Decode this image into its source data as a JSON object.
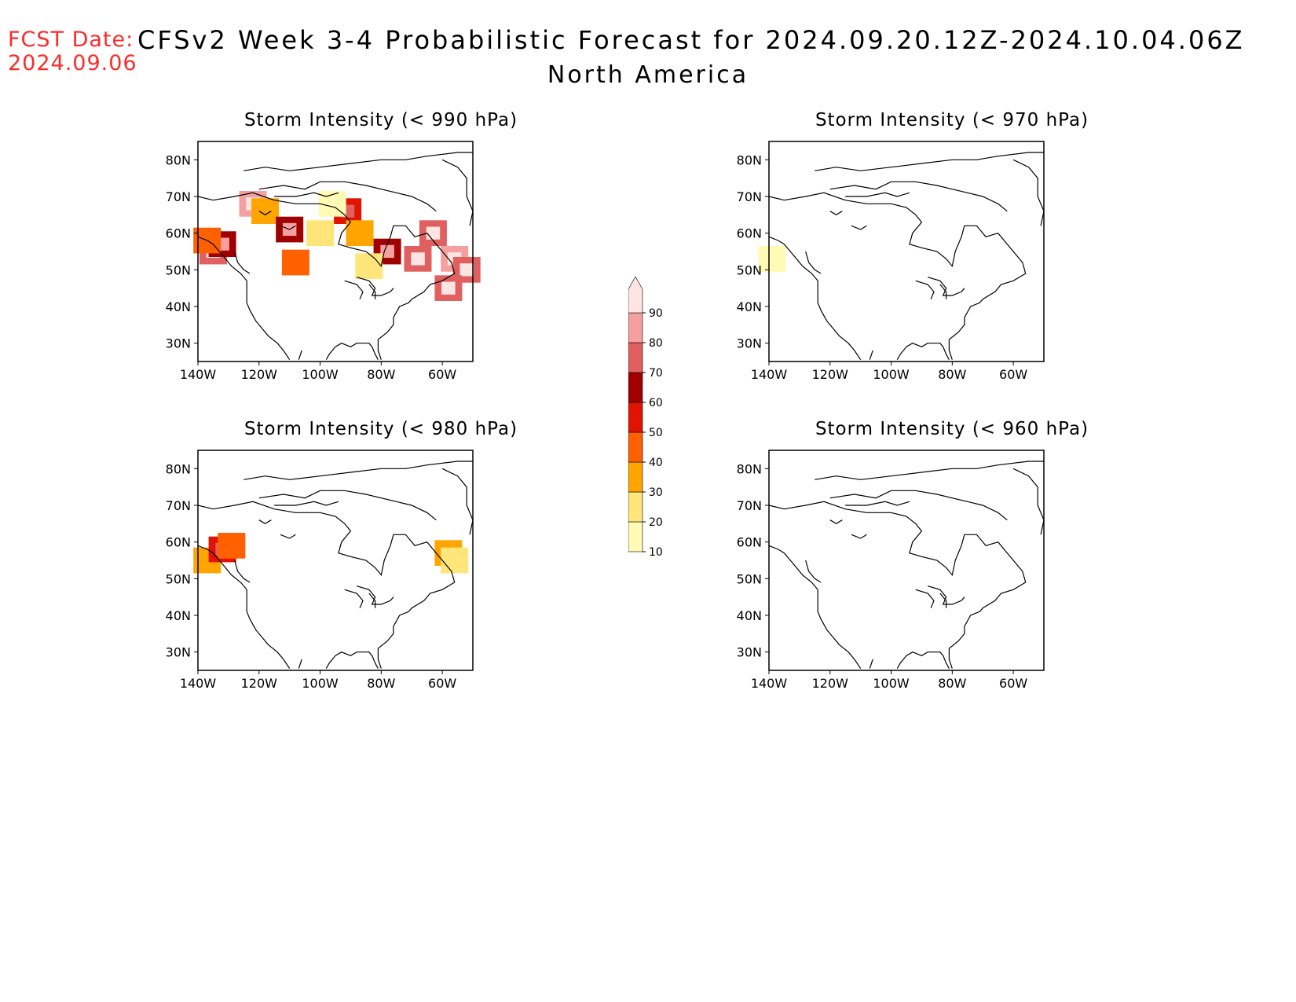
{
  "header": {
    "fcst_label": "FCST Date:",
    "fcst_date": "2024.09.06",
    "title": "CFSv2 Week 3-4 Probabilistic Forecast for 2024.09.20.12Z-2024.10.04.06Z",
    "subtitle": "North America"
  },
  "panels": [
    {
      "id": "p990",
      "title": "Storm Intensity (< 990 hPa)",
      "lat_ticks": [
        "80N",
        "70N",
        "60N",
        "50N",
        "40N",
        "30N"
      ],
      "lon_ticks": [
        "140W",
        "120W",
        "100W",
        "80W",
        "60W"
      ],
      "probability_cells": [
        {
          "lon": -135,
          "lat": 55,
          "p": 70
        },
        {
          "lon": -132,
          "lat": 57,
          "p": 60
        },
        {
          "lon": -137,
          "lat": 58,
          "p": 40
        },
        {
          "lon": -122,
          "lat": 68,
          "p": 85
        },
        {
          "lon": -118,
          "lat": 66,
          "p": 30
        },
        {
          "lon": -110,
          "lat": 61,
          "p": 60
        },
        {
          "lon": -108,
          "lat": 52,
          "p": 40
        },
        {
          "lon": -91,
          "lat": 66,
          "p": 50
        },
        {
          "lon": -87,
          "lat": 60,
          "p": 30
        },
        {
          "lon": -78,
          "lat": 55,
          "p": 60
        },
        {
          "lon": -68,
          "lat": 53,
          "p": 70
        },
        {
          "lon": -63,
          "lat": 60,
          "p": 70
        },
        {
          "lon": -56,
          "lat": 53,
          "p": 85
        },
        {
          "lon": -52,
          "lat": 50,
          "p": 75
        },
        {
          "lon": -58,
          "lat": 45,
          "p": 70
        },
        {
          "lon": -100,
          "lat": 60,
          "p": 20
        },
        {
          "lon": -96,
          "lat": 68,
          "p": 15
        },
        {
          "lon": -84,
          "lat": 51,
          "p": 20
        }
      ]
    },
    {
      "id": "p970",
      "title": "Storm Intensity (< 970 hPa)",
      "lat_ticks": [
        "80N",
        "70N",
        "60N",
        "50N",
        "40N",
        "30N"
      ],
      "lon_ticks": [
        "140W",
        "120W",
        "100W",
        "80W",
        "60W"
      ],
      "probability_cells": [
        {
          "lon": -139,
          "lat": 53,
          "p": 15
        }
      ]
    },
    {
      "id": "p980",
      "title": "Storm Intensity (< 980 hPa)",
      "lat_ticks": [
        "80N",
        "70N",
        "60N",
        "50N",
        "40N",
        "30N"
      ],
      "lon_ticks": [
        "140W",
        "120W",
        "100W",
        "80W",
        "60W"
      ],
      "probability_cells": [
        {
          "lon": -137,
          "lat": 55,
          "p": 30
        },
        {
          "lon": -132,
          "lat": 58,
          "p": 55
        },
        {
          "lon": -129,
          "lat": 59,
          "p": 45
        },
        {
          "lon": -58,
          "lat": 57,
          "p": 35
        },
        {
          "lon": -56,
          "lat": 55,
          "p": 20
        }
      ]
    },
    {
      "id": "p960",
      "title": "Storm Intensity (< 960 hPa)",
      "lat_ticks": [
        "80N",
        "70N",
        "60N",
        "50N",
        "40N",
        "30N"
      ],
      "lon_ticks": [
        "140W",
        "120W",
        "100W",
        "80W",
        "60W"
      ],
      "probability_cells": []
    }
  ],
  "colorbar": {
    "levels": [
      "10",
      "20",
      "30",
      "40",
      "50",
      "60",
      "70",
      "80",
      "90"
    ],
    "colors": [
      "#fffab4",
      "#ffe57a",
      "#ffa500",
      "#ff6000",
      "#e01400",
      "#a00000",
      "#e06060",
      "#f5a0a0",
      "#ffe4e4"
    ]
  }
}
